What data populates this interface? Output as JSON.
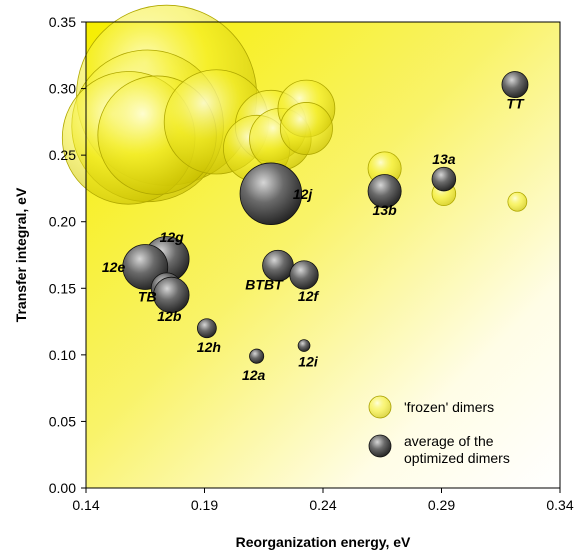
{
  "chart_data": {
    "type": "scatter",
    "xlabel": "Reorganization energy, eV",
    "ylabel": "Transfer integral, eV",
    "xlim": [
      0.14,
      0.34
    ],
    "ylim": [
      0.0,
      0.35
    ],
    "xticks": [
      "0.14",
      "0.19",
      "0.24",
      "0.29",
      "0.34"
    ],
    "yticks": [
      "0.00",
      "0.05",
      "0.10",
      "0.15",
      "0.20",
      "0.25",
      "0.30",
      "0.35"
    ],
    "x_tick_values": [
      0.14,
      0.19,
      0.24,
      0.29,
      0.34
    ],
    "y_tick_values": [
      0.0,
      0.05,
      0.1,
      0.15,
      0.2,
      0.25,
      0.3,
      0.35
    ],
    "grid": false,
    "legend_position": "bottom-right",
    "background": "yellow gradient",
    "series": [
      {
        "name": "'frozen' dimers",
        "color": "#f2ec1e",
        "points": [
          {
            "x": 0.174,
            "y": 0.295,
            "size": 0.038
          },
          {
            "x": 0.166,
            "y": 0.272,
            "size": 0.032
          },
          {
            "x": 0.158,
            "y": 0.263,
            "size": 0.028
          },
          {
            "x": 0.17,
            "y": 0.265,
            "size": 0.025
          },
          {
            "x": 0.195,
            "y": 0.275,
            "size": 0.022
          },
          {
            "x": 0.218,
            "y": 0.272,
            "size": 0.015
          },
          {
            "x": 0.212,
            "y": 0.255,
            "size": 0.014
          },
          {
            "x": 0.222,
            "y": 0.262,
            "size": 0.013
          },
          {
            "x": 0.233,
            "y": 0.285,
            "size": 0.012
          },
          {
            "x": 0.233,
            "y": 0.27,
            "size": 0.011
          },
          {
            "x": 0.266,
            "y": 0.24,
            "size": 0.007
          },
          {
            "x": 0.291,
            "y": 0.221,
            "size": 0.005
          },
          {
            "x": 0.322,
            "y": 0.215,
            "size": 0.004
          }
        ]
      },
      {
        "name": "average of the optimized dimers",
        "color": "#555555",
        "points": [
          {
            "x": 0.321,
            "y": 0.303,
            "size": 0.0055,
            "label": "TT"
          },
          {
            "x": 0.291,
            "y": 0.232,
            "size": 0.005,
            "label": "13a"
          },
          {
            "x": 0.266,
            "y": 0.223,
            "size": 0.007,
            "label": "13b"
          },
          {
            "x": 0.218,
            "y": 0.221,
            "size": 0.013,
            "label": "12j"
          },
          {
            "x": 0.174,
            "y": 0.172,
            "size": 0.0095,
            "label": "12g"
          },
          {
            "x": 0.165,
            "y": 0.166,
            "size": 0.0095,
            "label": "12e"
          },
          {
            "x": 0.174,
            "y": 0.15,
            "size": 0.0065,
            "label": "TB"
          },
          {
            "x": 0.176,
            "y": 0.145,
            "size": 0.0075,
            "label": "12b"
          },
          {
            "x": 0.221,
            "y": 0.167,
            "size": 0.0065,
            "label": "BTBT"
          },
          {
            "x": 0.232,
            "y": 0.16,
            "size": 0.006,
            "label": "12f"
          },
          {
            "x": 0.191,
            "y": 0.12,
            "size": 0.004,
            "label": "12h"
          },
          {
            "x": 0.212,
            "y": 0.099,
            "size": 0.003,
            "label": "12a"
          },
          {
            "x": 0.232,
            "y": 0.107,
            "size": 0.0025,
            "label": "12i"
          }
        ]
      }
    ],
    "legend": [
      {
        "label": "'frozen' dimers"
      },
      {
        "label": "average of the optimized dimers"
      }
    ]
  }
}
